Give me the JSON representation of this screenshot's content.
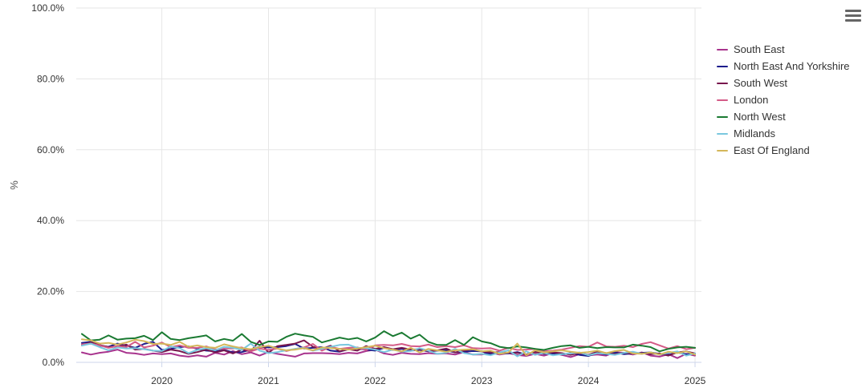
{
  "chart_data": {
    "type": "line",
    "title": "",
    "xlabel": "",
    "ylabel": "%",
    "ylim": [
      0,
      100
    ],
    "xlim": [
      "2019-04",
      "2025-01"
    ],
    "y_ticks": [
      "0.0%",
      "20.0%",
      "40.0%",
      "60.0%",
      "80.0%",
      "100.0%"
    ],
    "y_tick_values": [
      0,
      20,
      40,
      60,
      80,
      100
    ],
    "x_ticks": [
      "2020",
      "2021",
      "2022",
      "2023",
      "2024",
      "2025"
    ],
    "x_tick_values": [
      "2020-01",
      "2021-01",
      "2022-01",
      "2023-01",
      "2024-01",
      "2025-01"
    ],
    "grid": true,
    "legend_position": "right",
    "x": [
      "2019-04",
      "2019-05",
      "2019-06",
      "2019-07",
      "2019-08",
      "2019-09",
      "2019-10",
      "2019-11",
      "2019-12",
      "2020-01",
      "2020-02",
      "2020-03",
      "2020-04",
      "2020-05",
      "2020-06",
      "2020-07",
      "2020-08",
      "2020-09",
      "2020-10",
      "2020-11",
      "2020-12",
      "2021-01",
      "2021-02",
      "2021-03",
      "2021-04",
      "2021-05",
      "2021-06",
      "2021-07",
      "2021-08",
      "2021-09",
      "2021-10",
      "2021-11",
      "2021-12",
      "2022-01",
      "2022-02",
      "2022-03",
      "2022-04",
      "2022-05",
      "2022-06",
      "2022-07",
      "2022-08",
      "2022-09",
      "2022-10",
      "2022-11",
      "2022-12",
      "2023-01",
      "2023-02",
      "2023-03",
      "2023-04",
      "2023-05",
      "2023-06",
      "2023-07",
      "2023-08",
      "2023-09",
      "2023-10",
      "2023-11",
      "2023-12",
      "2024-01",
      "2024-02",
      "2024-03",
      "2024-04",
      "2024-05",
      "2024-06",
      "2024-07",
      "2024-08",
      "2024-09",
      "2024-10",
      "2024-11",
      "2024-12",
      "2025-01"
    ],
    "series": [
      {
        "name": "South East",
        "color": "#a8338d",
        "values": [
          2.8,
          2.2,
          2.7,
          3.0,
          3.6,
          2.7,
          2.5,
          2.1,
          2.5,
          2.3,
          2.5,
          1.9,
          1.6,
          2.0,
          1.6,
          2.7,
          2.2,
          3.2,
          2.3,
          2.8,
          1.9,
          2.9,
          2.4,
          2.0,
          1.6,
          2.5,
          2.6,
          2.6,
          2.5,
          2.3,
          2.7,
          2.5,
          3.2,
          3.6,
          2.5,
          2.1,
          2.7,
          2.4,
          2.3,
          2.6,
          2.4,
          2.5,
          2.2,
          2.9,
          2.2,
          2.2,
          2.8,
          2.2,
          2.6,
          2.1,
          1.8,
          2.4,
          1.9,
          2.6,
          2.1,
          1.5,
          2.3,
          2.0,
          2.2,
          1.9,
          2.9,
          2.7,
          2.2,
          2.8,
          1.9,
          1.6,
          2.3,
          1.2,
          2.4,
          1.9
        ]
      },
      {
        "name": "North East And Yorkshire",
        "color": "#1c1c8c",
        "values": [
          5.5,
          5.8,
          4.7,
          4.4,
          5.3,
          4.7,
          4.1,
          5.2,
          5.8,
          3.5,
          3.8,
          4.3,
          4.5,
          3.8,
          3.3,
          3.1,
          3.5,
          2.8,
          2.9,
          3.6,
          4.4,
          4.2,
          4.3,
          4.6,
          5.2,
          3.9,
          4.1,
          4.3,
          3.3,
          3.0,
          3.7,
          3.9,
          3.6,
          3.3,
          4.1,
          3.5,
          3.8,
          3.3,
          3.5,
          3.1,
          3.3,
          3.4,
          2.8,
          3.0,
          3.2,
          3.1,
          2.3,
          2.6,
          2.5,
          2.9,
          2.2,
          3.0,
          2.4,
          2.5,
          2.2,
          2.6,
          2.1,
          1.8,
          2.7,
          2.2,
          2.8,
          2.3,
          2.5,
          2.7,
          2.8,
          2.4,
          2.1,
          2.8,
          2.3,
          2.4
        ]
      },
      {
        "name": "South West",
        "color": "#78174d",
        "values": [
          4.9,
          5.6,
          4.9,
          4.3,
          4.5,
          5.0,
          3.6,
          3.8,
          3.3,
          2.9,
          3.6,
          3.2,
          2.4,
          2.9,
          3.6,
          2.8,
          3.4,
          2.5,
          3.6,
          3.1,
          6.1,
          2.7,
          4.6,
          4.9,
          5.3,
          6.2,
          4.4,
          3.8,
          4.7,
          3.1,
          3.7,
          3.3,
          4.6,
          3.8,
          4.3,
          3.7,
          4.1,
          3.6,
          3.7,
          3.2,
          3.4,
          3.9,
          2.8,
          3.3,
          3.7,
          3.1,
          2.8,
          2.9,
          2.7,
          2.7,
          2.2,
          2.9,
          2.5,
          2.8,
          2.6,
          2.1,
          2.7,
          2.1,
          3.0,
          2.6,
          2.3,
          2.7,
          2.5,
          2.6,
          2.3,
          2.5,
          1.9,
          2.8,
          3.1,
          2.5
        ]
      },
      {
        "name": "London",
        "color": "#d45b87",
        "values": [
          5.1,
          5.3,
          4.8,
          4.1,
          4.6,
          4.3,
          5.8,
          4.2,
          4.7,
          5.6,
          4.3,
          4.8,
          4.1,
          4.1,
          4.5,
          3.6,
          3.9,
          3.9,
          4.2,
          3.1,
          3.9,
          3.5,
          3.9,
          3.2,
          3.8,
          4.2,
          5.2,
          3.3,
          4.4,
          3.8,
          4.1,
          4.2,
          3.5,
          4.8,
          4.9,
          4.8,
          5.2,
          4.6,
          4.5,
          5.0,
          4.3,
          4.6,
          4.3,
          4.8,
          4.0,
          3.9,
          4.0,
          3.3,
          4.1,
          3.5,
          3.6,
          3.8,
          3.1,
          3.3,
          3.6,
          4.1,
          4.6,
          4.4,
          5.6,
          4.5,
          4.4,
          4.7,
          4.3,
          5.2,
          5.7,
          4.8,
          3.9,
          4.6,
          3.7,
          4.1
        ]
      },
      {
        "name": "North West",
        "color": "#1a7a32",
        "values": [
          8.0,
          6.2,
          6.4,
          7.6,
          6.4,
          6.7,
          6.8,
          7.5,
          6.3,
          8.5,
          6.6,
          6.3,
          6.8,
          7.2,
          7.6,
          5.9,
          6.6,
          6.1,
          8.0,
          5.8,
          4.9,
          5.9,
          5.8,
          7.2,
          8.1,
          7.6,
          7.2,
          5.6,
          6.3,
          7.0,
          6.5,
          6.9,
          5.9,
          7.0,
          8.8,
          7.4,
          8.4,
          6.7,
          7.8,
          5.8,
          4.9,
          4.9,
          6.3,
          4.9,
          7.1,
          5.9,
          5.4,
          4.4,
          4.0,
          4.5,
          4.2,
          3.8,
          3.5,
          4.1,
          4.6,
          4.8,
          4.1,
          4.4,
          4.0,
          4.3,
          4.2,
          4.2,
          5.0,
          4.7,
          4.3,
          3.1,
          3.8,
          4.2,
          4.4,
          4.1
        ]
      },
      {
        "name": "Midlands",
        "color": "#7ac8df",
        "values": [
          4.7,
          5.3,
          4.3,
          3.4,
          4.2,
          3.9,
          4.0,
          3.7,
          3.3,
          3.2,
          4.5,
          4.0,
          2.6,
          3.5,
          4.0,
          3.4,
          4.4,
          4.1,
          3.5,
          5.3,
          3.3,
          2.6,
          2.9,
          3.4,
          3.8,
          4.1,
          3.3,
          3.8,
          4.4,
          4.9,
          5.0,
          4.1,
          4.0,
          3.6,
          2.9,
          3.6,
          3.0,
          3.2,
          4.0,
          3.3,
          2.4,
          2.7,
          3.8,
          2.6,
          2.2,
          2.4,
          2.0,
          2.8,
          3.4,
          1.7,
          3.1,
          2.1,
          2.7,
          2.0,
          2.3,
          2.5,
          2.8,
          2.0,
          2.6,
          2.4,
          2.1,
          2.7,
          3.0,
          2.4,
          2.8,
          2.2,
          2.7,
          3.1,
          1.9,
          2.5
        ]
      },
      {
        "name": "East Of England",
        "color": "#d4b75a",
        "values": [
          6.5,
          6.2,
          5.3,
          5.5,
          5.0,
          5.6,
          6.4,
          6.0,
          5.2,
          5.3,
          4.9,
          5.8,
          4.4,
          4.8,
          4.3,
          4.1,
          5.1,
          4.5,
          4.0,
          3.7,
          4.3,
          4.7,
          3.9,
          3.4,
          3.6,
          4.0,
          3.4,
          4.2,
          4.0,
          3.8,
          3.6,
          3.9,
          4.3,
          4.7,
          4.0,
          3.6,
          3.1,
          4.1,
          2.8,
          3.8,
          3.4,
          3.0,
          3.4,
          3.6,
          3.7,
          3.1,
          3.3,
          2.4,
          2.8,
          5.3,
          2.0,
          3.4,
          2.8,
          3.1,
          3.4,
          3.0,
          2.7,
          2.9,
          3.3,
          2.6,
          3.2,
          3.5,
          2.5,
          2.4,
          2.8,
          2.2,
          3.0,
          2.6,
          3.1,
          2.2
        ]
      }
    ]
  },
  "menu": {
    "icon": "hamburger-menu-icon"
  }
}
